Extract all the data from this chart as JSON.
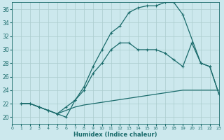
{
  "background_color": "#cce8ed",
  "grid_color": "#aacccc",
  "line_color": "#1a6b6b",
  "xlim": [
    0,
    23
  ],
  "ylim": [
    19,
    37
  ],
  "yticks": [
    20,
    22,
    24,
    26,
    28,
    30,
    32,
    34,
    36
  ],
  "xticks": [
    0,
    1,
    2,
    3,
    4,
    5,
    6,
    7,
    8,
    9,
    10,
    11,
    12,
    13,
    14,
    15,
    16,
    17,
    18,
    19,
    20,
    21,
    22,
    23
  ],
  "xlabel": "Humidex (Indice chaleur)",
  "line1_x": [
    1,
    2,
    3,
    4,
    5,
    6,
    7,
    8,
    9,
    10,
    11,
    12,
    13,
    14,
    15,
    16,
    17,
    18,
    19,
    21,
    22,
    23
  ],
  "line1_y": [
    22,
    22,
    21.5,
    21,
    20.5,
    20.0,
    22.5,
    24.5,
    27.5,
    30.0,
    32.5,
    33.5,
    35.5,
    36.2,
    36.5,
    36.5,
    37.0,
    37.0,
    35.2,
    28.0,
    27.5,
    23.5
  ],
  "line2_x": [
    1,
    2,
    3,
    4,
    5,
    6,
    7,
    8,
    9,
    10,
    11,
    12,
    13,
    14,
    15,
    16,
    17,
    18,
    19,
    20,
    21,
    22,
    23
  ],
  "line2_y": [
    22,
    22,
    21.5,
    21,
    20.5,
    21.5,
    22.5,
    24.0,
    26.5,
    28.0,
    30.0,
    31.0,
    31.0,
    30.0,
    30.0,
    30.0,
    29.5,
    28.5,
    27.5,
    31.0,
    28.0,
    27.5,
    23.5
  ],
  "line3_x": [
    1,
    2,
    3,
    4,
    5,
    6,
    7,
    8,
    9,
    10,
    11,
    12,
    13,
    14,
    15,
    16,
    17,
    18,
    19,
    20,
    21,
    22,
    23
  ],
  "line3_y": [
    22,
    22,
    21.5,
    21,
    20.5,
    21.0,
    21.5,
    21.8,
    22.0,
    22.2,
    22.4,
    22.6,
    22.8,
    23.0,
    23.2,
    23.4,
    23.6,
    23.8,
    24.0,
    24.0,
    24.0,
    24.0,
    24.0
  ]
}
